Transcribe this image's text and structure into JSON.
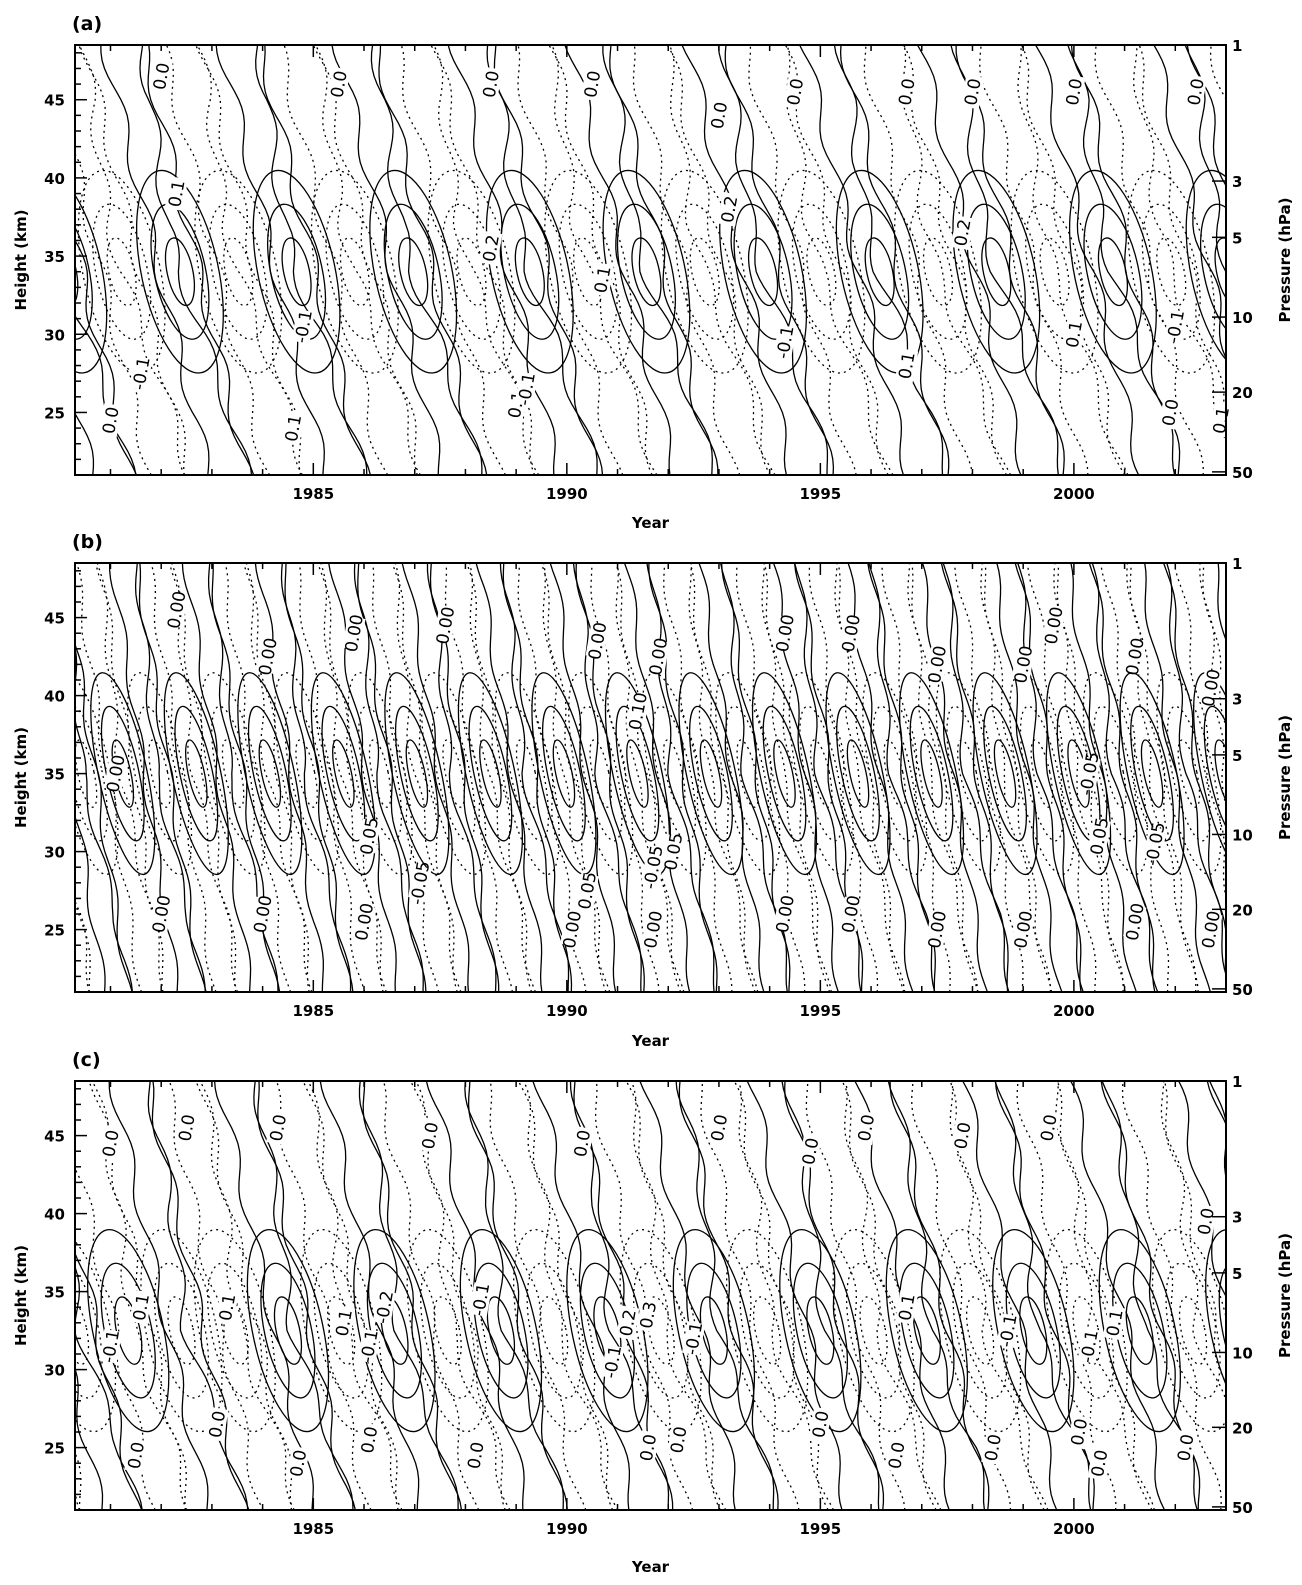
{
  "chart_data": [
    {
      "type": "contour",
      "panel": "(a)",
      "xlabel": "Year",
      "ylabel": "Height (km)",
      "y2label": "Pressure (hPa)",
      "xlim": [
        1980.3,
        2003.0
      ],
      "ylim": [
        21,
        48.5
      ],
      "xticks": [
        1985,
        1990,
        1995,
        2000
      ],
      "yticks": [
        25,
        30,
        35,
        40,
        45
      ],
      "pressure_ticks": [
        {
          "p": "1",
          "h": 48.5
        },
        {
          "p": "3",
          "h": 39.8
        },
        {
          "p": "5",
          "h": 36.2
        },
        {
          "p": "10",
          "h": 31.1
        },
        {
          "p": "20",
          "h": 26.3
        },
        {
          "p": "50",
          "h": 21.2
        }
      ],
      "period_years": 2.3,
      "phase_offset": 0.15,
      "amplitude_profile": [
        [
          21,
          0.1
        ],
        [
          25,
          0.25
        ],
        [
          30,
          0.6
        ],
        [
          34,
          1.0
        ],
        [
          37,
          1.0
        ],
        [
          41,
          0.7
        ],
        [
          45,
          0.35
        ],
        [
          48.5,
          0.2
        ]
      ],
      "contour_labels": [
        {
          "text": "0.0",
          "year": 1981.0,
          "h": 24.5,
          "angle": -80
        },
        {
          "text": "-0.1",
          "year": 1981.6,
          "h": 27.5,
          "angle": -80
        },
        {
          "text": "0.1",
          "year": 1984.6,
          "h": 24.0,
          "angle": -80
        },
        {
          "text": "-0.1",
          "year": 1984.8,
          "h": 30.5,
          "angle": -80
        },
        {
          "text": "0.0",
          "year": 1982.0,
          "h": 46.5,
          "angle": -80
        },
        {
          "text": "0.1",
          "year": 1982.3,
          "h": 39.0,
          "angle": -80
        },
        {
          "text": "0.0",
          "year": 1985.5,
          "h": 46.0,
          "angle": -80
        },
        {
          "text": "0.2",
          "year": 1988.5,
          "h": 35.5,
          "angle": -80
        },
        {
          "text": "-0.1",
          "year": 1887.0,
          "h": 0,
          "angle": -80
        },
        {
          "text": "0.0",
          "year": 1988.5,
          "h": 46.0,
          "angle": -80
        },
        {
          "text": "0.1",
          "year": 1989.0,
          "h": 25.5,
          "angle": -80
        },
        {
          "text": "0.1",
          "year": 1990.7,
          "h": 33.5,
          "angle": -80
        },
        {
          "text": "0.0",
          "year": 1990.5,
          "h": 46.0,
          "angle": -80
        },
        {
          "text": "-0.1",
          "year": 1989.2,
          "h": 26.5,
          "angle": -80
        },
        {
          "text": "0.2",
          "year": 1993.2,
          "h": 38.0,
          "angle": -80
        },
        {
          "text": "0.0",
          "year": 1993.0,
          "h": 44.0,
          "angle": -80
        },
        {
          "text": "-0.1",
          "year": 1994.3,
          "h": 29.5,
          "angle": -80
        },
        {
          "text": "0.0",
          "year": 1994.5,
          "h": 45.5,
          "angle": -80
        },
        {
          "text": "0.1",
          "year": 1996.7,
          "h": 28.0,
          "angle": -80
        },
        {
          "text": "0.0",
          "year": 1996.7,
          "h": 45.5,
          "angle": -80
        },
        {
          "text": "0.2",
          "year": 1997.8,
          "h": 36.5,
          "angle": -80
        },
        {
          "text": "0.0",
          "year": 1998.0,
          "h": 45.5,
          "angle": -80
        },
        {
          "text": "0.1",
          "year": 2000.0,
          "h": 30.0,
          "angle": -80
        },
        {
          "text": "-0.1",
          "year": 2002.0,
          "h": 30.5,
          "angle": -80
        },
        {
          "text": "0.0",
          "year": 2001.9,
          "h": 25.0,
          "angle": -80
        },
        {
          "text": "0.1",
          "year": 2002.9,
          "h": 24.5,
          "angle": -80
        },
        {
          "text": "0.0",
          "year": 2002.4,
          "h": 45.5,
          "angle": -80
        },
        {
          "text": "0.0",
          "year": 2000.0,
          "h": 45.5,
          "angle": -80
        }
      ]
    },
    {
      "type": "contour",
      "panel": "(b)",
      "xlabel": "Year",
      "ylabel": "Height (km)",
      "y2label": "Pressure (hPa)",
      "xlim": [
        1980.3,
        2003.0
      ],
      "ylim": [
        21,
        48.5
      ],
      "xticks": [
        1985,
        1990,
        1995,
        2000
      ],
      "yticks": [
        25,
        30,
        35,
        40,
        45
      ],
      "pressure_ticks": [
        {
          "p": "1",
          "h": 48.5
        },
        {
          "p": "3",
          "h": 39.8
        },
        {
          "p": "5",
          "h": 36.2
        },
        {
          "p": "10",
          "h": 31.1
        },
        {
          "p": "20",
          "h": 26.3
        },
        {
          "p": "50",
          "h": 21.2
        }
      ],
      "period_years": 1.45,
      "phase_offset": 0.4,
      "amplitude_profile": [
        [
          21,
          0.05
        ],
        [
          26,
          0.2
        ],
        [
          31,
          0.7
        ],
        [
          35,
          1.0
        ],
        [
          39,
          0.7
        ],
        [
          44,
          0.3
        ],
        [
          48.5,
          0.1
        ]
      ],
      "contour_labels": [
        {
          "text": "0.00",
          "year": 1981.1,
          "h": 35.0,
          "angle": -80
        },
        {
          "text": "0.00",
          "year": 1982.3,
          "h": 45.5,
          "angle": -80
        },
        {
          "text": "0.00",
          "year": 1982.0,
          "h": 26.0,
          "angle": -80
        },
        {
          "text": "0.00",
          "year": 1984.1,
          "h": 42.5,
          "angle": -80
        },
        {
          "text": "0.00",
          "year": 1984.0,
          "h": 26.0,
          "angle": -80
        },
        {
          "text": "0.00",
          "year": 1985.8,
          "h": 44.0,
          "angle": -80
        },
        {
          "text": "0.05",
          "year": 1986.1,
          "h": 31.0,
          "angle": -80
        },
        {
          "text": "0.00",
          "year": 1986.0,
          "h": 25.5,
          "angle": -80
        },
        {
          "text": "-0.05",
          "year": 1987.1,
          "h": 28.0,
          "angle": -80
        },
        {
          "text": "0.00",
          "year": 1987.6,
          "h": 44.5,
          "angle": -80
        },
        {
          "text": "0.00",
          "year": 1990.6,
          "h": 43.5,
          "angle": -80
        },
        {
          "text": "0.10",
          "year": 1991.4,
          "h": 39.0,
          "angle": -80
        },
        {
          "text": "0.00",
          "year": 1991.8,
          "h": 42.5,
          "angle": -80
        },
        {
          "text": "0.05",
          "year": 1990.4,
          "h": 27.5,
          "angle": -80
        },
        {
          "text": "0.00",
          "year": 1990.1,
          "h": 25.0,
          "angle": -80
        },
        {
          "text": "-0.05",
          "year": 1991.7,
          "h": 29.0,
          "angle": -80
        },
        {
          "text": "0.05",
          "year": 1992.1,
          "h": 30.0,
          "angle": -80
        },
        {
          "text": "0.00",
          "year": 1991.7,
          "h": 25.0,
          "angle": -80
        },
        {
          "text": "0.00",
          "year": 1994.3,
          "h": 44.0,
          "angle": -80
        },
        {
          "text": "0.00",
          "year": 1994.3,
          "h": 26.0,
          "angle": -80
        },
        {
          "text": "0.00",
          "year": 1995.6,
          "h": 44.0,
          "angle": -80
        },
        {
          "text": "0.00",
          "year": 1995.6,
          "h": 26.0,
          "angle": -80
        },
        {
          "text": "0.00",
          "year": 1997.3,
          "h": 42.0,
          "angle": -80
        },
        {
          "text": "0.00",
          "year": 1997.3,
          "h": 25.0,
          "angle": -80
        },
        {
          "text": "0.00",
          "year": 1999.0,
          "h": 42.0,
          "angle": -80
        },
        {
          "text": "0.00",
          "year": 1999.0,
          "h": 25.0,
          "angle": -80
        },
        {
          "text": "0.00",
          "year": 1999.6,
          "h": 44.5,
          "angle": -80
        },
        {
          "text": "-0.05",
          "year": 2000.3,
          "h": 35.0,
          "angle": -80
        },
        {
          "text": "0.05",
          "year": 2000.5,
          "h": 31.0,
          "angle": -80
        },
        {
          "text": "0.00",
          "year": 2001.2,
          "h": 42.5,
          "angle": -80
        },
        {
          "text": "-0.05",
          "year": 2001.6,
          "h": 30.5,
          "angle": -80
        },
        {
          "text": "0.00",
          "year": 2001.2,
          "h": 25.5,
          "angle": -80
        },
        {
          "text": "0.00",
          "year": 2002.7,
          "h": 40.5,
          "angle": -80
        },
        {
          "text": "0.00",
          "year": 2002.7,
          "h": 25.0,
          "angle": -80
        }
      ]
    },
    {
      "type": "contour",
      "panel": "(c)",
      "xlabel": "Year",
      "ylabel": "Height (km)",
      "y2label": "Pressure (hPa)",
      "xlim": [
        1980.3,
        2003.0
      ],
      "ylim": [
        21,
        48.5
      ],
      "xticks": [
        1985,
        1990,
        1995,
        2000
      ],
      "yticks": [
        25,
        30,
        35,
        40,
        45
      ],
      "pressure_ticks": [
        {
          "p": "1",
          "h": 48.5
        },
        {
          "p": "3",
          "h": 39.8
        },
        {
          "p": "5",
          "h": 36.2
        },
        {
          "p": "10",
          "h": 31.1
        },
        {
          "p": "20",
          "h": 26.3
        },
        {
          "p": "50",
          "h": 21.2
        }
      ],
      "period_years": 2.1,
      "phase_offset": 0.25,
      "amplitude_profile": [
        [
          21,
          0.05
        ],
        [
          25,
          0.2
        ],
        [
          29,
          0.7
        ],
        [
          32.5,
          1.0
        ],
        [
          36,
          0.7
        ],
        [
          41,
          0.25
        ],
        [
          48.5,
          0.05
        ]
      ],
      "contour_labels": [
        {
          "text": "0.0",
          "year": 1981.0,
          "h": 44.5,
          "angle": -80
        },
        {
          "text": "-0.1",
          "year": 1981.0,
          "h": 31.5,
          "angle": -80
        },
        {
          "text": "0.1",
          "year": 1981.6,
          "h": 34.0,
          "angle": -80
        },
        {
          "text": "0.0",
          "year": 1981.5,
          "h": 24.5,
          "angle": -80
        },
        {
          "text": "0.0",
          "year": 1982.5,
          "h": 45.5,
          "angle": -80
        },
        {
          "text": "0.1",
          "year": 1983.3,
          "h": 34.0,
          "angle": -80
        },
        {
          "text": "0.0",
          "year": 1983.1,
          "h": 26.5,
          "angle": -80
        },
        {
          "text": "0.0",
          "year": 1984.3,
          "h": 45.5,
          "angle": -80
        },
        {
          "text": "0.0",
          "year": 1984.7,
          "h": 24.0,
          "angle": -80
        },
        {
          "text": "0.1",
          "year": 1985.6,
          "h": 33.0,
          "angle": -80
        },
        {
          "text": "-0.2",
          "year": 1986.4,
          "h": 34.0,
          "angle": -80
        },
        {
          "text": "-0.1",
          "year": 1986.1,
          "h": 31.5,
          "angle": -80
        },
        {
          "text": "0.0",
          "year": 1986.1,
          "h": 25.5,
          "angle": -80
        },
        {
          "text": "0.0",
          "year": 1987.3,
          "h": 45.0,
          "angle": -80
        },
        {
          "text": "-0.1",
          "year": 1988.3,
          "h": 34.5,
          "angle": -80
        },
        {
          "text": "0.0",
          "year": 1988.2,
          "h": 24.5,
          "angle": -80
        },
        {
          "text": "0.0",
          "year": 1990.3,
          "h": 44.5,
          "angle": -80
        },
        {
          "text": "-0.1",
          "year": 1990.9,
          "h": 30.5,
          "angle": -80
        },
        {
          "text": "0.2",
          "year": 1991.2,
          "h": 33.0,
          "angle": -80
        },
        {
          "text": "0.3",
          "year": 1991.6,
          "h": 33.5,
          "angle": -80
        },
        {
          "text": "0.0",
          "year": 1991.6,
          "h": 25.0,
          "angle": -80
        },
        {
          "text": "-0.1",
          "year": 1992.5,
          "h": 32.0,
          "angle": -80
        },
        {
          "text": "0.0",
          "year": 1992.2,
          "h": 25.5,
          "angle": -80
        },
        {
          "text": "0.0",
          "year": 1993.0,
          "h": 45.5,
          "angle": -80
        },
        {
          "text": "0.0",
          "year": 1994.8,
          "h": 44.0,
          "angle": -80
        },
        {
          "text": "0.0",
          "year": 1995.0,
          "h": 26.5,
          "angle": -80
        },
        {
          "text": "0.0",
          "year": 1995.9,
          "h": 45.5,
          "angle": -80
        },
        {
          "text": "0.0",
          "year": 1996.5,
          "h": 24.5,
          "angle": -80
        },
        {
          "text": "0.1",
          "year": 1996.7,
          "h": 34.0,
          "angle": -80
        },
        {
          "text": "0.0",
          "year": 1997.8,
          "h": 45.0,
          "angle": -80
        },
        {
          "text": "0.0",
          "year": 1998.4,
          "h": 25.0,
          "angle": -80
        },
        {
          "text": "-0.1",
          "year": 1998.7,
          "h": 32.5,
          "angle": -80
        },
        {
          "text": "0.0",
          "year": 1999.5,
          "h": 45.5,
          "angle": -80
        },
        {
          "text": "0.0",
          "year": 2000.1,
          "h": 26.0,
          "angle": -80
        },
        {
          "text": "-0.1",
          "year": 2000.3,
          "h": 31.5,
          "angle": -80
        },
        {
          "text": "0.1",
          "year": 2000.8,
          "h": 33.0,
          "angle": -80
        },
        {
          "text": "0.0",
          "year": 2000.5,
          "h": 24.0,
          "angle": -80
        },
        {
          "text": "0.0",
          "year": 2002.2,
          "h": 25.0,
          "angle": -80
        },
        {
          "text": "0.0",
          "year": 2002.6,
          "h": 39.5,
          "angle": -80
        }
      ]
    }
  ]
}
